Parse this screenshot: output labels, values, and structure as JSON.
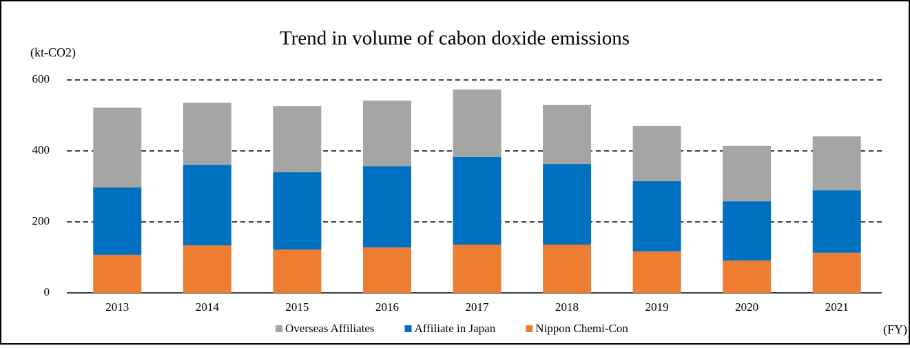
{
  "chart_data": {
    "type": "stacked_bar",
    "title": "Trend in volume of cabon doxide emissions",
    "y_label": "(kt-CO2)",
    "x_label": "(FY)",
    "categories": [
      "2013",
      "2014",
      "2015",
      "2016",
      "2017",
      "2018",
      "2019",
      "2020",
      "2021"
    ],
    "series": [
      {
        "name": "Nippon Chemi-Con",
        "color": "#ed7d31",
        "values": [
          107,
          134,
          122,
          128,
          136,
          136,
          117,
          91,
          113
        ]
      },
      {
        "name": "Affiliate in Japan",
        "color": "#0070c0",
        "values": [
          190,
          227,
          218,
          229,
          247,
          227,
          198,
          167,
          176
        ]
      },
      {
        "name": "Overseas Affiliates",
        "color": "#a5a5a5",
        "values": [
          225,
          175,
          186,
          185,
          190,
          167,
          155,
          156,
          152
        ]
      }
    ],
    "ylim": [
      0,
      600
    ],
    "yticks": [
      0,
      200,
      400,
      600
    ],
    "grid": true,
    "legend": "bottom"
  }
}
